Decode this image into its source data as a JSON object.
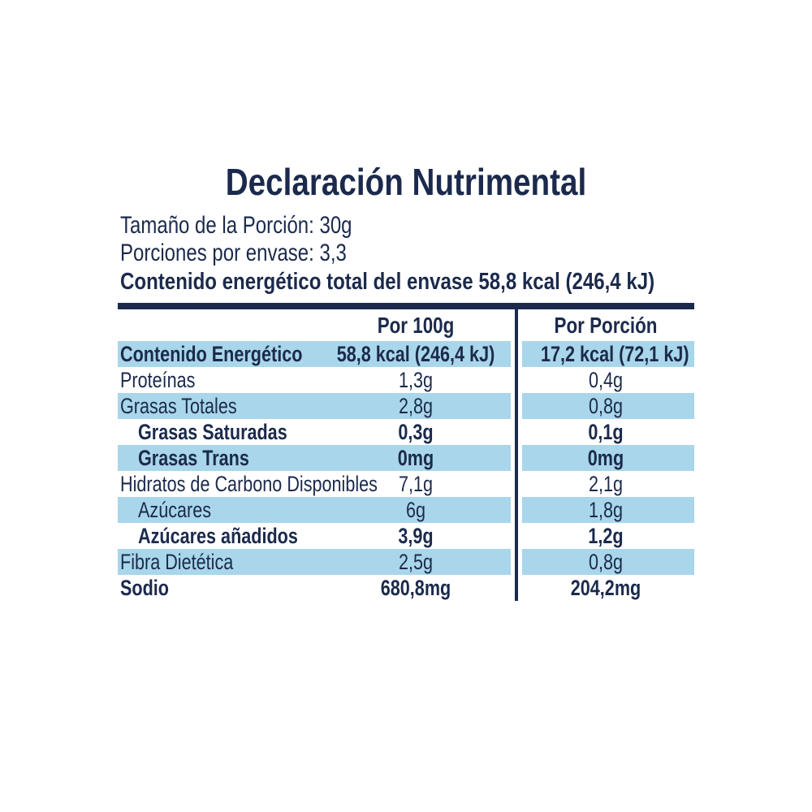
{
  "colors": {
    "navy_text": "#1b2a4c",
    "shaded_row_blue": "#a9d6ea",
    "background": "#ffffff"
  },
  "title": "Declaración Nutrimental",
  "info": {
    "serving_size": "Tamaño de la Porción: 30g",
    "servings_per_pack": "Porciones por envase: 3,3",
    "total_energy": "Contenido energético total del envase 58,8 kcal (246,4 kJ)"
  },
  "table": {
    "columns": [
      "Por 100g",
      "Por Porción"
    ],
    "rows": [
      {
        "label": "Contenido Energético",
        "per100": "58,8 kcal (246,4 kJ)",
        "portion": "17,2 kcal (72,1 kJ)",
        "bold": true,
        "indent": false,
        "shaded": true
      },
      {
        "label": "Proteínas",
        "per100": "1,3g",
        "portion": "0,4g",
        "bold": false,
        "indent": false,
        "shaded": false
      },
      {
        "label": "Grasas Totales",
        "per100": "2,8g",
        "portion": "0,8g",
        "bold": false,
        "indent": false,
        "shaded": true
      },
      {
        "label": "Grasas Saturadas",
        "per100": "0,3g",
        "portion": "0,1g",
        "bold": true,
        "indent": true,
        "shaded": false
      },
      {
        "label": "Grasas Trans",
        "per100": "0mg",
        "portion": "0mg",
        "bold": true,
        "indent": true,
        "shaded": true
      },
      {
        "label": "Hidratos de Carbono Disponibles",
        "per100": "7,1g",
        "portion": "2,1g",
        "bold": false,
        "indent": false,
        "shaded": false
      },
      {
        "label": "Azúcares",
        "per100": "6g",
        "portion": "1,8g",
        "bold": false,
        "indent": true,
        "shaded": true
      },
      {
        "label": "Azúcares añadidos",
        "per100": "3,9g",
        "portion": "1,2g",
        "bold": true,
        "indent": true,
        "shaded": false
      },
      {
        "label": "Fibra Dietética",
        "per100": "2,5g",
        "portion": "0,8g",
        "bold": false,
        "indent": false,
        "shaded": true
      },
      {
        "label": "Sodio",
        "per100": "680,8mg",
        "portion": "204,2mg",
        "bold": true,
        "indent": false,
        "shaded": false
      }
    ]
  }
}
